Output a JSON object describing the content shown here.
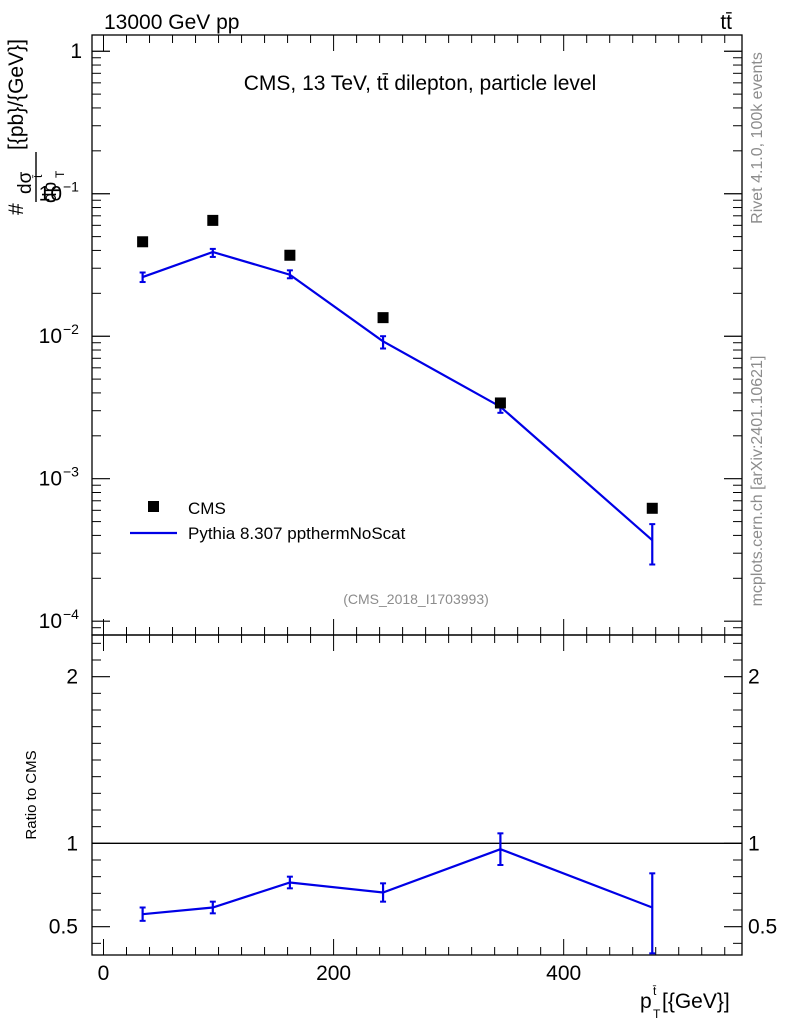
{
  "header": {
    "left": "13000 GeV pp",
    "right": "tt̄"
  },
  "side_texts": {
    "rivet": "Rivet 4.1.0,  100k events",
    "mcplots": "mcplots.cern.ch [arXiv:2401.10621]"
  },
  "chart_data": [
    {
      "type": "scatter",
      "panel": "main",
      "title": "CMS, 13 TeV, tt̄ dilepton, particle level",
      "watermark": "(CMS_2018_I1703993)",
      "ylabel": "# dσ/dp_T^{t̄} [{pb}/{GeV}]",
      "yscale": "log",
      "ylim": [
        8e-05,
        1.3
      ],
      "xlim": [
        -10,
        555
      ],
      "yticks": [
        {
          "value": 1,
          "label": "1"
        },
        {
          "value": 0.1,
          "label": "10",
          "exp": "−1"
        },
        {
          "value": 0.01,
          "label": "10",
          "exp": "−2"
        },
        {
          "value": 0.001,
          "label": "10",
          "exp": "−3"
        },
        {
          "value": 0.0001,
          "label": "10",
          "exp": "−4"
        }
      ],
      "legend": {
        "position": "bottom-left",
        "entries": [
          "CMS",
          "Pythia 8.307 ppthermNoScat"
        ]
      },
      "series": [
        {
          "name": "CMS",
          "style": "markers",
          "color": "#000000",
          "x": [
            34,
            95,
            162,
            243,
            345,
            477
          ],
          "y": [
            0.046,
            0.065,
            0.037,
            0.0135,
            0.0034,
            0.00062
          ]
        },
        {
          "name": "Pythia 8.307 ppthermNoScat",
          "style": "line",
          "color": "#0000e6",
          "x": [
            34,
            95,
            162,
            243,
            345,
            477
          ],
          "y": [
            0.026,
            0.039,
            0.027,
            0.0092,
            0.0032,
            0.00037
          ],
          "err_low": [
            0.024,
            0.036,
            0.0255,
            0.0082,
            0.0029,
            0.00025
          ],
          "err_high": [
            0.028,
            0.041,
            0.029,
            0.01,
            0.0035,
            0.00048
          ]
        }
      ]
    },
    {
      "type": "line",
      "panel": "ratio",
      "ylabel": "Ratio to CMS",
      "xlabel": "p_T^{t̄} [{GeV}]",
      "ylim": [
        0.33,
        2.25
      ],
      "xlim": [
        -10,
        555
      ],
      "reference": 1.0,
      "yticks": [
        {
          "value": 0.5,
          "label": "0.5"
        },
        {
          "value": 1,
          "label": "1"
        },
        {
          "value": 2,
          "label": "2"
        }
      ],
      "xticks": [
        {
          "value": 0,
          "label": "0"
        },
        {
          "value": 200,
          "label": "200"
        },
        {
          "value": 400,
          "label": "400"
        }
      ],
      "series": [
        {
          "name": "Pythia 8.307 ppthermNoScat / CMS",
          "color": "#0000e6",
          "x": [
            34,
            95,
            162,
            243,
            345,
            477
          ],
          "y": [
            0.575,
            0.615,
            0.765,
            0.705,
            0.965,
            0.615
          ],
          "err_low": [
            0.535,
            0.58,
            0.73,
            0.65,
            0.87,
            0.34
          ],
          "err_high": [
            0.615,
            0.65,
            0.8,
            0.76,
            1.06,
            0.82
          ]
        }
      ]
    }
  ]
}
